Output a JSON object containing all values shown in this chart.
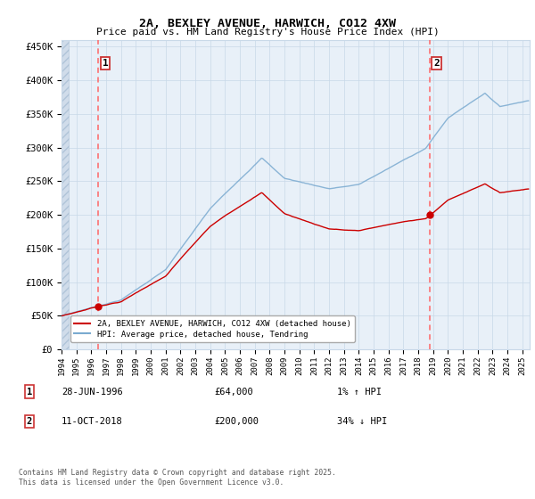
{
  "title": "2A, BEXLEY AVENUE, HARWICH, CO12 4XW",
  "subtitle": "Price paid vs. HM Land Registry's House Price Index (HPI)",
  "ylim": [
    0,
    460000
  ],
  "yticks": [
    0,
    50000,
    100000,
    150000,
    200000,
    250000,
    300000,
    350000,
    400000,
    450000
  ],
  "ytick_labels": [
    "£0",
    "£50K",
    "£100K",
    "£150K",
    "£200K",
    "£250K",
    "£300K",
    "£350K",
    "£400K",
    "£450K"
  ],
  "xmin_year": 1994.0,
  "xmax_year": 2025.5,
  "sale1_year": 1996.486,
  "sale1_price": 64000,
  "sale2_year": 2018.783,
  "sale2_price": 200000,
  "line_color": "#cc0000",
  "hpi_color": "#7aaad0",
  "vline_color": "#ff6666",
  "grid_color": "#c8d8e8",
  "bg_plot": "#e8f0f8",
  "legend_line1": "2A, BEXLEY AVENUE, HARWICH, CO12 4XW (detached house)",
  "legend_line2": "HPI: Average price, detached house, Tendring",
  "annot1_date": "28-JUN-1996",
  "annot1_price": "£64,000",
  "annot1_hpi": "1% ↑ HPI",
  "annot2_date": "11-OCT-2018",
  "annot2_price": "£200,000",
  "annot2_hpi": "34% ↓ HPI",
  "footer": "Contains HM Land Registry data © Crown copyright and database right 2025.\nThis data is licensed under the Open Government Licence v3.0.",
  "xtick_years": [
    1994,
    1995,
    1996,
    1997,
    1998,
    1999,
    2000,
    2001,
    2002,
    2003,
    2004,
    2005,
    2006,
    2007,
    2008,
    2009,
    2010,
    2011,
    2012,
    2013,
    2014,
    2015,
    2016,
    2017,
    2018,
    2019,
    2020,
    2021,
    2022,
    2023,
    2024,
    2025
  ]
}
